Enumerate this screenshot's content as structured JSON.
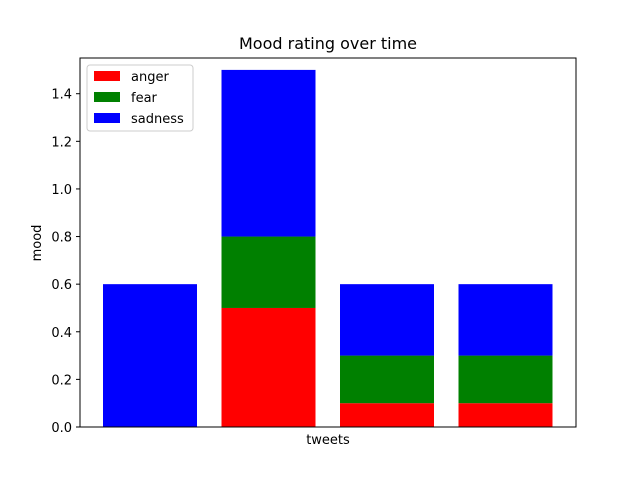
{
  "chart_data": {
    "type": "bar",
    "stacked": true,
    "title": "Mood rating over time",
    "xlabel": "tweets",
    "ylabel": "mood",
    "ylim": [
      0,
      1.55
    ],
    "yticks": [
      "0.0",
      "0.2",
      "0.4",
      "0.6",
      "0.8",
      "1.0",
      "1.2",
      "1.4"
    ],
    "bar_count": 4,
    "series": [
      {
        "name": "anger",
        "color": "#ff0000",
        "values": [
          0.0,
          0.5,
          0.1,
          0.1
        ]
      },
      {
        "name": "fear",
        "color": "#008000",
        "values": [
          0.0,
          0.3,
          0.2,
          0.2
        ]
      },
      {
        "name": "sadness",
        "color": "#0000ff",
        "values": [
          0.6,
          0.7,
          0.3,
          0.3
        ]
      }
    ],
    "legend_position": "top-left",
    "grid": false
  }
}
